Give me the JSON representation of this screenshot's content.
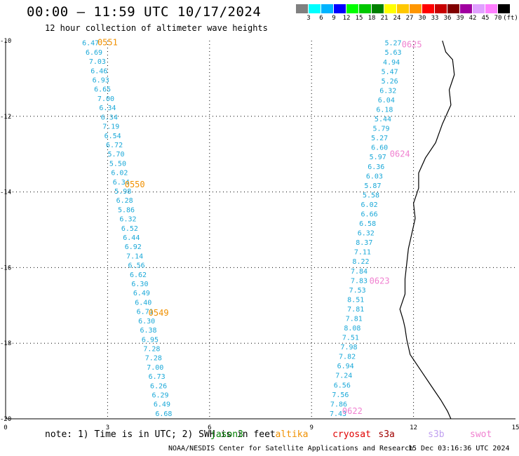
{
  "title": "00:00 – 11:59 UTC 10/17/2024",
  "subtitle": "12 hour collection of altimeter wave heights",
  "colorbar": {
    "colors": [
      "#808080",
      "#00ffff",
      "#00b4ff",
      "#0000ff",
      "#00ff00",
      "#00c800",
      "#008000",
      "#ffff00",
      "#ffc800",
      "#ff9600",
      "#ff0000",
      "#c80000",
      "#800000",
      "#a000a0",
      "#e0a0ff",
      "#ff80ff",
      "#000000"
    ],
    "labels": [
      "3",
      "6",
      "9",
      "12",
      "15",
      "18",
      "21",
      "24",
      "27",
      "30",
      "33",
      "36",
      "39",
      "42",
      "45",
      "70",
      "(ft)"
    ]
  },
  "axes": {
    "x_ticks": [
      "0",
      "3",
      "6",
      "9",
      "12",
      "15"
    ],
    "y_ticks": [
      "-10",
      "-12",
      "-14",
      "-16",
      "-18",
      "-20"
    ],
    "x_range": [
      0,
      15
    ],
    "y_range": [
      -20,
      -10
    ],
    "grid": "dotted"
  },
  "tracks": [
    {
      "color": "#1aa8d8",
      "values": [
        "6.47",
        "6.69",
        "7.03",
        "6.46",
        "6.93",
        "6.65",
        "7.00",
        "6.34",
        "6.34",
        "7.19",
        "6.54",
        "6.72",
        "5.70",
        "5.50",
        "6.02",
        "6.34",
        "5.98",
        "6.28",
        "5.86",
        "6.32",
        "6.52",
        "6.44",
        "6.92",
        "7.14",
        "6.56",
        "6.62",
        "6.30",
        "6.49",
        "6.40",
        "6.71",
        "6.30",
        "6.38",
        "6.95",
        "7.28",
        "7.28",
        "7.00",
        "6.73",
        "6.26",
        "6.29",
        "6.49",
        "6.68"
      ],
      "lons": [
        2.5,
        2.6,
        2.7,
        2.75,
        2.8,
        2.85,
        2.95,
        3.0,
        3.05,
        3.1,
        3.15,
        3.2,
        3.25,
        3.3,
        3.35,
        3.4,
        3.45,
        3.5,
        3.55,
        3.6,
        3.65,
        3.7,
        3.75,
        3.8,
        3.85,
        3.9,
        3.95,
        4.0,
        4.05,
        4.1,
        4.15,
        4.2,
        4.25,
        4.3,
        4.35,
        4.4,
        4.45,
        4.5,
        4.55,
        4.6,
        4.65
      ],
      "labels": [
        {
          "text": "0551",
          "lon": 3.0,
          "lat": -10.05
        },
        {
          "text": "0550",
          "lon": 3.8,
          "lat": -13.8
        },
        {
          "text": "0549",
          "lon": 4.5,
          "lat": -17.2
        }
      ],
      "label_color": "#f09000"
    },
    {
      "color": "#1aa8d8",
      "values": [
        "5.27",
        "5.63",
        "4.94",
        "5.47",
        "5.26",
        "6.32",
        "6.04",
        "6.18",
        "5.44",
        "5.79",
        "5.27",
        "6.60",
        "5.97",
        "6.36",
        "6.03",
        "5.87",
        "5.58",
        "6.02",
        "6.66",
        "6.58",
        "6.32",
        "8.37",
        "7.11",
        "8.22",
        "7.84",
        "7.83",
        "7.53",
        "8.51",
        "7.81",
        "7.81",
        "8.08",
        "7.51",
        "7.98",
        "7.82",
        "6.94",
        "7.24",
        "6.56",
        "7.56",
        "7.86",
        "7.43"
      ],
      "lons": [
        11.4,
        11.4,
        11.35,
        11.3,
        11.3,
        11.25,
        11.2,
        11.15,
        11.1,
        11.05,
        11.0,
        11.0,
        10.95,
        10.9,
        10.85,
        10.8,
        10.75,
        10.7,
        10.7,
        10.65,
        10.6,
        10.55,
        10.5,
        10.45,
        10.4,
        10.4,
        10.35,
        10.3,
        10.3,
        10.25,
        10.2,
        10.15,
        10.1,
        10.05,
        10.0,
        9.95,
        9.9,
        9.85,
        9.8,
        9.78
      ],
      "labels": [
        {
          "text": "0625",
          "lon": 11.95,
          "lat": -10.1
        },
        {
          "text": "0624",
          "lon": 11.6,
          "lat": -13.0
        },
        {
          "text": "0623",
          "lon": 11.0,
          "lat": -16.35
        },
        {
          "text": "0622",
          "lon": 10.2,
          "lat": -19.8
        }
      ],
      "label_color": "#f080d0"
    }
  ],
  "coastline": [
    [
      12.85,
      -10.0
    ],
    [
      12.95,
      -10.3
    ],
    [
      13.15,
      -10.5
    ],
    [
      13.2,
      -10.9
    ],
    [
      13.05,
      -11.3
    ],
    [
      13.1,
      -11.7
    ],
    [
      12.85,
      -12.2
    ],
    [
      12.65,
      -12.7
    ],
    [
      12.35,
      -13.1
    ],
    [
      12.15,
      -13.5
    ],
    [
      12.15,
      -13.9
    ],
    [
      12.0,
      -14.3
    ],
    [
      12.05,
      -14.7
    ],
    [
      11.95,
      -15.1
    ],
    [
      11.85,
      -15.5
    ],
    [
      11.8,
      -15.9
    ],
    [
      11.75,
      -16.3
    ],
    [
      11.75,
      -16.7
    ],
    [
      11.6,
      -17.1
    ],
    [
      11.7,
      -17.4
    ],
    [
      11.75,
      -17.6
    ],
    [
      11.8,
      -17.9
    ],
    [
      11.9,
      -18.3
    ],
    [
      12.2,
      -18.7
    ],
    [
      12.5,
      -19.1
    ],
    [
      12.8,
      -19.5
    ],
    [
      13.0,
      -19.8
    ],
    [
      13.1,
      -20.0
    ]
  ],
  "note": "note: 1) Time is in UTC; 2) SWH is in feet",
  "satellites": [
    {
      "name": "jason3",
      "color": "#008000",
      "lon": 2.1
    },
    {
      "name": "altika",
      "color": "#f09000",
      "lon": 2.95
    },
    {
      "name": "cryosat",
      "color": "#e00000",
      "lon": 3.7
    },
    {
      "name": "s3a",
      "color": "#a00000",
      "lon": 4.3
    },
    {
      "name": "s3b",
      "color": "#c0a0f0",
      "lon": 4.95
    },
    {
      "name": "swot",
      "color": "#f080d0",
      "lon": 5.5
    }
  ],
  "credit": "NOAA/NESDIS Center for Satellite Applications and Research",
  "timestamp": "15 Dec 03:16:36 UTC 2024"
}
